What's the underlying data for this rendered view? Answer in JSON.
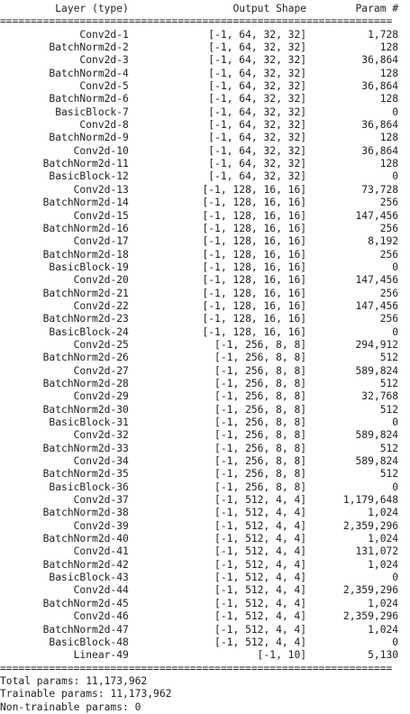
{
  "header": {
    "layer": "Layer (type)",
    "output": "Output Shape",
    "param": "Param #"
  },
  "rule": "=",
  "rows": [
    {
      "layer": "Conv2d-1",
      "shape": "[-1, 64, 32, 32]",
      "param": "1,728"
    },
    {
      "layer": "BatchNorm2d-2",
      "shape": "[-1, 64, 32, 32]",
      "param": "128"
    },
    {
      "layer": "Conv2d-3",
      "shape": "[-1, 64, 32, 32]",
      "param": "36,864"
    },
    {
      "layer": "BatchNorm2d-4",
      "shape": "[-1, 64, 32, 32]",
      "param": "128"
    },
    {
      "layer": "Conv2d-5",
      "shape": "[-1, 64, 32, 32]",
      "param": "36,864"
    },
    {
      "layer": "BatchNorm2d-6",
      "shape": "[-1, 64, 32, 32]",
      "param": "128"
    },
    {
      "layer": "BasicBlock-7",
      "shape": "[-1, 64, 32, 32]",
      "param": "0"
    },
    {
      "layer": "Conv2d-8",
      "shape": "[-1, 64, 32, 32]",
      "param": "36,864"
    },
    {
      "layer": "BatchNorm2d-9",
      "shape": "[-1, 64, 32, 32]",
      "param": "128"
    },
    {
      "layer": "Conv2d-10",
      "shape": "[-1, 64, 32, 32]",
      "param": "36,864"
    },
    {
      "layer": "BatchNorm2d-11",
      "shape": "[-1, 64, 32, 32]",
      "param": "128"
    },
    {
      "layer": "BasicBlock-12",
      "shape": "[-1, 64, 32, 32]",
      "param": "0"
    },
    {
      "layer": "Conv2d-13",
      "shape": "[-1, 128, 16, 16]",
      "param": "73,728"
    },
    {
      "layer": "BatchNorm2d-14",
      "shape": "[-1, 128, 16, 16]",
      "param": "256"
    },
    {
      "layer": "Conv2d-15",
      "shape": "[-1, 128, 16, 16]",
      "param": "147,456"
    },
    {
      "layer": "BatchNorm2d-16",
      "shape": "[-1, 128, 16, 16]",
      "param": "256"
    },
    {
      "layer": "Conv2d-17",
      "shape": "[-1, 128, 16, 16]",
      "param": "8,192"
    },
    {
      "layer": "BatchNorm2d-18",
      "shape": "[-1, 128, 16, 16]",
      "param": "256"
    },
    {
      "layer": "BasicBlock-19",
      "shape": "[-1, 128, 16, 16]",
      "param": "0"
    },
    {
      "layer": "Conv2d-20",
      "shape": "[-1, 128, 16, 16]",
      "param": "147,456"
    },
    {
      "layer": "BatchNorm2d-21",
      "shape": "[-1, 128, 16, 16]",
      "param": "256"
    },
    {
      "layer": "Conv2d-22",
      "shape": "[-1, 128, 16, 16]",
      "param": "147,456"
    },
    {
      "layer": "BatchNorm2d-23",
      "shape": "[-1, 128, 16, 16]",
      "param": "256"
    },
    {
      "layer": "BasicBlock-24",
      "shape": "[-1, 128, 16, 16]",
      "param": "0"
    },
    {
      "layer": "Conv2d-25",
      "shape": "[-1, 256, 8, 8]",
      "param": "294,912"
    },
    {
      "layer": "BatchNorm2d-26",
      "shape": "[-1, 256, 8, 8]",
      "param": "512"
    },
    {
      "layer": "Conv2d-27",
      "shape": "[-1, 256, 8, 8]",
      "param": "589,824"
    },
    {
      "layer": "BatchNorm2d-28",
      "shape": "[-1, 256, 8, 8]",
      "param": "512"
    },
    {
      "layer": "Conv2d-29",
      "shape": "[-1, 256, 8, 8]",
      "param": "32,768"
    },
    {
      "layer": "BatchNorm2d-30",
      "shape": "[-1, 256, 8, 8]",
      "param": "512"
    },
    {
      "layer": "BasicBlock-31",
      "shape": "[-1, 256, 8, 8]",
      "param": "0"
    },
    {
      "layer": "Conv2d-32",
      "shape": "[-1, 256, 8, 8]",
      "param": "589,824"
    },
    {
      "layer": "BatchNorm2d-33",
      "shape": "[-1, 256, 8, 8]",
      "param": "512"
    },
    {
      "layer": "Conv2d-34",
      "shape": "[-1, 256, 8, 8]",
      "param": "589,824"
    },
    {
      "layer": "BatchNorm2d-35",
      "shape": "[-1, 256, 8, 8]",
      "param": "512"
    },
    {
      "layer": "BasicBlock-36",
      "shape": "[-1, 256, 8, 8]",
      "param": "0"
    },
    {
      "layer": "Conv2d-37",
      "shape": "[-1, 512, 4, 4]",
      "param": "1,179,648"
    },
    {
      "layer": "BatchNorm2d-38",
      "shape": "[-1, 512, 4, 4]",
      "param": "1,024"
    },
    {
      "layer": "Conv2d-39",
      "shape": "[-1, 512, 4, 4]",
      "param": "2,359,296"
    },
    {
      "layer": "BatchNorm2d-40",
      "shape": "[-1, 512, 4, 4]",
      "param": "1,024"
    },
    {
      "layer": "Conv2d-41",
      "shape": "[-1, 512, 4, 4]",
      "param": "131,072"
    },
    {
      "layer": "BatchNorm2d-42",
      "shape": "[-1, 512, 4, 4]",
      "param": "1,024"
    },
    {
      "layer": "BasicBlock-43",
      "shape": "[-1, 512, 4, 4]",
      "param": "0"
    },
    {
      "layer": "Conv2d-44",
      "shape": "[-1, 512, 4, 4]",
      "param": "2,359,296"
    },
    {
      "layer": "BatchNorm2d-45",
      "shape": "[-1, 512, 4, 4]",
      "param": "1,024"
    },
    {
      "layer": "Conv2d-46",
      "shape": "[-1, 512, 4, 4]",
      "param": "2,359,296"
    },
    {
      "layer": "BatchNorm2d-47",
      "shape": "[-1, 512, 4, 4]",
      "param": "1,024"
    },
    {
      "layer": "BasicBlock-48",
      "shape": "[-1, 512, 4, 4]",
      "param": "0"
    },
    {
      "layer": "Linear-49",
      "shape": "[-1, 10]",
      "param": "5,130"
    }
  ],
  "totals": [
    {
      "label": "Total params: ",
      "value": "11,173,962"
    },
    {
      "label": "Trainable params: ",
      "value": "11,173,962"
    },
    {
      "label": "Non-trainable params: ",
      "value": "0"
    }
  ]
}
